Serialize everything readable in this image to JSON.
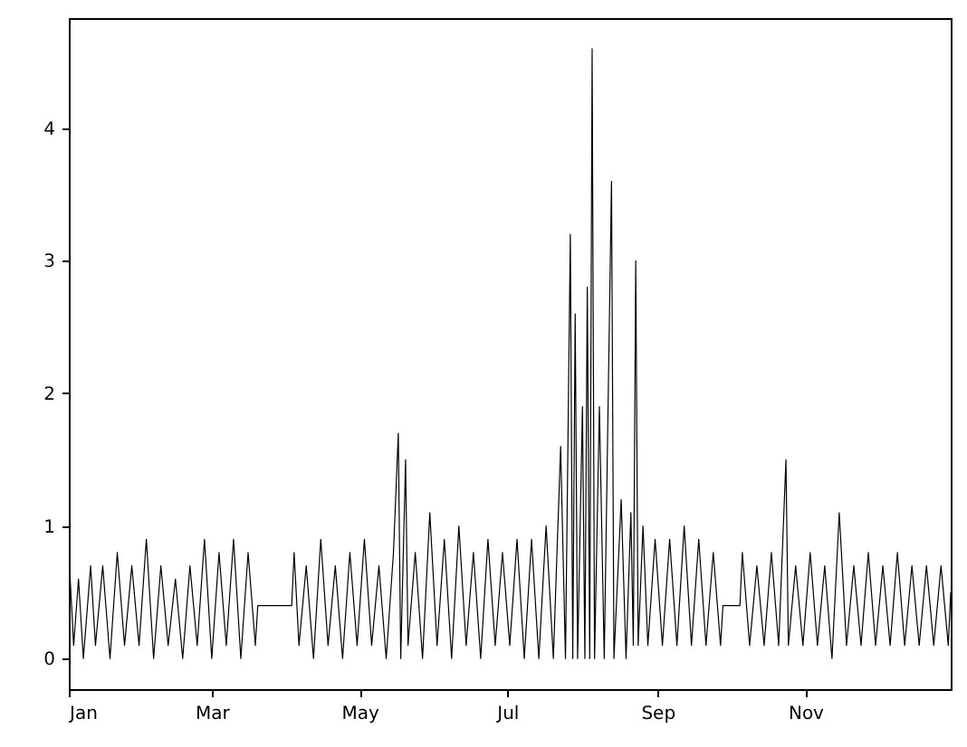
{
  "chart_data": {
    "type": "line",
    "x": [
      "--01-01",
      "--01-03",
      "--01-05",
      "--01-07",
      "--01-10",
      "--01-12",
      "--01-15",
      "--01-18",
      "--01-21",
      "--01-24",
      "--01-27",
      "--01-30",
      "--02-02",
      "--02-05",
      "--02-08",
      "--02-11",
      "--02-14",
      "--02-17",
      "--02-20",
      "--02-23",
      "--02-26",
      "--03-01",
      "--03-04",
      "--03-07",
      "--03-10",
      "--03-13",
      "--03-16",
      "--03-19",
      "--03-20",
      "--04-03",
      "--04-04",
      "--04-06",
      "--04-09",
      "--04-12",
      "--04-15",
      "--04-18",
      "--04-21",
      "--04-24",
      "--04-27",
      "--04-30",
      "--05-03",
      "--05-06",
      "--05-09",
      "--05-12",
      "--05-15",
      "--05-17",
      "--05-18",
      "--05-20",
      "--05-21",
      "--05-24",
      "--05-27",
      "--05-30",
      "--06-02",
      "--06-05",
      "--06-08",
      "--06-11",
      "--06-14",
      "--06-17",
      "--06-20",
      "--06-23",
      "--06-26",
      "--06-29",
      "--07-02",
      "--07-05",
      "--07-08",
      "--07-11",
      "--07-14",
      "--07-17",
      "--07-20",
      "--07-23",
      "--07-25",
      "--07-27",
      "--07-28",
      "--07-29",
      "--07-30",
      "--08-01",
      "--08-02",
      "--08-03",
      "--08-04",
      "--08-05",
      "--08-06",
      "--08-08",
      "--08-10",
      "--08-13",
      "--08-14",
      "--08-17",
      "--08-19",
      "--08-21",
      "--08-22",
      "--08-23",
      "--08-24",
      "--08-26",
      "--08-28",
      "--08-31",
      "--09-03",
      "--09-06",
      "--09-09",
      "--09-12",
      "--09-15",
      "--09-18",
      "--09-21",
      "--09-24",
      "--09-27",
      "--09-28",
      "--10-05",
      "--10-06",
      "--10-09",
      "--10-12",
      "--10-15",
      "--10-18",
      "--10-21",
      "--10-24",
      "--10-25",
      "--10-28",
      "--10-31",
      "--11-03",
      "--11-06",
      "--11-09",
      "--11-12",
      "--11-15",
      "--11-18",
      "--11-21",
      "--11-24",
      "--11-27",
      "--11-30",
      "--12-03",
      "--12-06",
      "--12-09",
      "--12-12",
      "--12-15",
      "--12-18",
      "--12-21",
      "--12-24",
      "--12-27",
      "--12-30",
      "--12-31"
    ],
    "series": [
      {
        "color": "#000000",
        "values": [
          0.8,
          0.1,
          0.6,
          0.0,
          0.7,
          0.1,
          0.7,
          0.0,
          0.8,
          0.1,
          0.7,
          0.1,
          0.9,
          0.0,
          0.7,
          0.1,
          0.6,
          0.0,
          0.7,
          0.1,
          0.9,
          0.0,
          0.8,
          0.1,
          0.9,
          0.0,
          0.8,
          0.1,
          0.4,
          0.4,
          0.8,
          0.1,
          0.7,
          0.0,
          0.9,
          0.1,
          0.7,
          0.0,
          0.8,
          0.1,
          0.9,
          0.1,
          0.7,
          0.0,
          0.8,
          1.7,
          0.0,
          1.5,
          0.1,
          0.8,
          0.0,
          1.1,
          0.1,
          0.9,
          0.0,
          1.0,
          0.1,
          0.8,
          0.0,
          0.9,
          0.1,
          0.8,
          0.1,
          0.9,
          0.0,
          0.9,
          0.0,
          1.0,
          0.0,
          1.6,
          0.0,
          3.2,
          0.0,
          2.6,
          0.0,
          1.9,
          0.0,
          2.8,
          0.0,
          4.6,
          0.0,
          1.9,
          0.0,
          3.6,
          0.0,
          1.2,
          0.0,
          1.1,
          0.1,
          3.0,
          0.1,
          1.0,
          0.1,
          0.9,
          0.1,
          0.9,
          0.1,
          1.0,
          0.1,
          0.9,
          0.1,
          0.8,
          0.1,
          0.4,
          0.4,
          0.8,
          0.1,
          0.7,
          0.1,
          0.8,
          0.1,
          1.5,
          0.1,
          0.7,
          0.1,
          0.8,
          0.1,
          0.7,
          0.0,
          1.1,
          0.1,
          0.7,
          0.1,
          0.8,
          0.1,
          0.7,
          0.1,
          0.8,
          0.1,
          0.7,
          0.1,
          0.7,
          0.1,
          0.7,
          0.1,
          0.5
        ]
      }
    ],
    "xlim": [
      "--01-01",
      "--12-31"
    ],
    "xticks": [
      {
        "value": "--01-01",
        "label": "Jan"
      },
      {
        "value": "--03-01",
        "label": "Mar"
      },
      {
        "value": "--05-01",
        "label": "May"
      },
      {
        "value": "--07-01",
        "label": "Jul"
      },
      {
        "value": "--09-01",
        "label": "Sep"
      },
      {
        "value": "--11-01",
        "label": "Nov"
      }
    ],
    "ylim": [
      -0.23,
      4.83
    ],
    "yticks": [
      0,
      1,
      2,
      3,
      4
    ],
    "grid": false,
    "line_style": "solid"
  }
}
